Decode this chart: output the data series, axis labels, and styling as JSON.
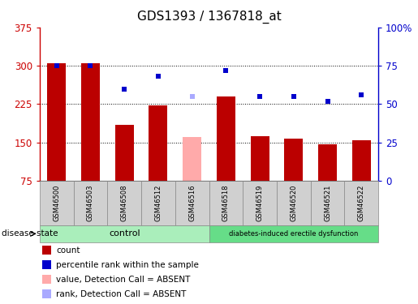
{
  "title": "GDS1393 / 1367818_at",
  "samples": [
    "GSM46500",
    "GSM46503",
    "GSM46508",
    "GSM46512",
    "GSM46516",
    "GSM46518",
    "GSM46519",
    "GSM46520",
    "GSM46521",
    "GSM46522"
  ],
  "bar_values": [
    305,
    305,
    185,
    222,
    160,
    240,
    163,
    158,
    147,
    155
  ],
  "bar_colors": [
    "#bb0000",
    "#bb0000",
    "#bb0000",
    "#bb0000",
    "#ffaaaa",
    "#bb0000",
    "#bb0000",
    "#bb0000",
    "#bb0000",
    "#bb0000"
  ],
  "rank_values": [
    75,
    75,
    60,
    68,
    55,
    72,
    55,
    55,
    52,
    56
  ],
  "rank_colors": [
    "#0000cc",
    "#0000cc",
    "#0000cc",
    "#0000cc",
    "#aaaaff",
    "#0000cc",
    "#0000cc",
    "#0000cc",
    "#0000cc",
    "#0000cc"
  ],
  "ylim_left": [
    75,
    375
  ],
  "ylim_right": [
    0,
    100
  ],
  "yticks_left": [
    75,
    150,
    225,
    300,
    375
  ],
  "yticks_right": [
    0,
    25,
    50,
    75,
    100
  ],
  "ytick_labels_right": [
    "0",
    "25",
    "50",
    "75",
    "100%"
  ],
  "n_control": 5,
  "n_disease": 5,
  "control_label": "control",
  "disease_label": "diabetes-induced erectile dysfunction",
  "disease_state_label": "disease state",
  "bar_width": 0.55,
  "legend_items": [
    {
      "label": "count",
      "color": "#bb0000"
    },
    {
      "label": "percentile rank within the sample",
      "color": "#0000cc"
    },
    {
      "label": "value, Detection Call = ABSENT",
      "color": "#ffaaaa"
    },
    {
      "label": "rank, Detection Call = ABSENT",
      "color": "#aaaaff"
    }
  ],
  "sample_box_color": "#d0d0d0",
  "group_color_control": "#aaeebb",
  "group_color_disease": "#66dd88",
  "title_fontsize": 11,
  "axis_color_left": "#cc0000",
  "axis_color_right": "#0000cc",
  "base_value": 75,
  "grid_lines": [
    150,
    225,
    300
  ]
}
